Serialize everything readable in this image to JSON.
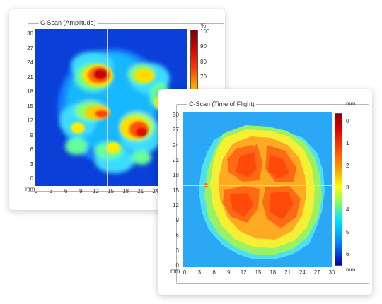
{
  "amplitude": {
    "title": "C-Scan (Amplitude)",
    "y_ticks": [
      "30",
      "27",
      "24",
      "21",
      "18",
      "15",
      "12",
      "9",
      "6",
      "3",
      "0"
    ],
    "x_ticks": [
      "0",
      "3",
      "6",
      "9",
      "12",
      "15",
      "18",
      "21",
      "24"
    ],
    "axis_unit": "mm",
    "colorbar": {
      "unit": "%",
      "ticks": [
        "100",
        "90",
        "80",
        "70"
      ],
      "colors": [
        "#7a0000",
        "#cc0000",
        "#ff3300",
        "#ff9900",
        "#ffee00",
        "#66ff66",
        "#00ddff",
        "#0066ff",
        "#0000aa"
      ]
    }
  },
  "tof": {
    "title": "C-Scan (Time of Flight)",
    "y_ticks": [
      "30",
      "27",
      "24",
      "21",
      "18",
      "15",
      "12",
      "9",
      "6",
      "3",
      "0"
    ],
    "x_ticks": [
      "0",
      "3",
      "6",
      "9",
      "12",
      "15",
      "18",
      "21",
      "24",
      "27",
      "30"
    ],
    "axis_unit": "mm",
    "colorbar": {
      "unit": "mm",
      "ticks": [
        "0",
        "1",
        "2",
        "3",
        "4",
        "5",
        "6"
      ],
      "colors": [
        "#8b0000",
        "#e00000",
        "#ff5500",
        "#ffaa00",
        "#ffff00",
        "#88ff55",
        "#00e5ff",
        "#0088ff",
        "#0000aa"
      ]
    }
  }
}
